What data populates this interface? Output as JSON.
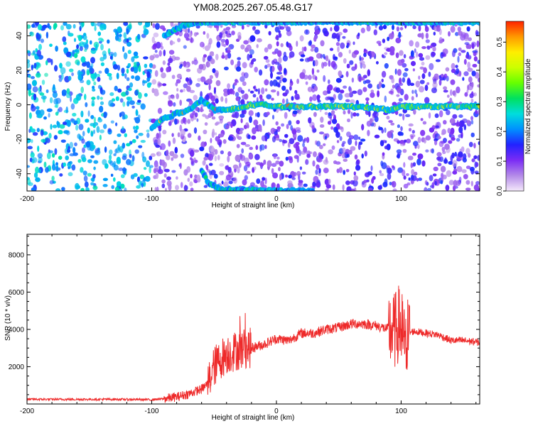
{
  "title": "YM08.2025.267.05.48.G17",
  "chart_data": [
    {
      "type": "heatmap",
      "title": "YM08.2025.267.05.48.G17",
      "xlabel": "Height of straight line (km)",
      "ylabel": "Frequency (Hz)",
      "xlim": [
        -200,
        163
      ],
      "ylim": [
        -50,
        48
      ],
      "xticks": [
        -200,
        -100,
        0,
        100
      ],
      "yticks": [
        -40,
        -20,
        0,
        20,
        40
      ],
      "colorbar": {
        "label": "Normalized spectral amplitude",
        "range": [
          0.0,
          0.57
        ],
        "ticks": [
          0.0,
          0.1,
          0.2,
          0.3,
          0.4,
          0.5
        ],
        "colors": [
          "#f4e9fb",
          "#b48ae8",
          "#7b2cf5",
          "#2222ff",
          "#0090ff",
          "#00dddd",
          "#00e060",
          "#66ff00",
          "#ccff00",
          "#ffee00",
          "#ff9900",
          "#ff2200"
        ]
      },
      "features": [
        {
          "name": "signal-trace",
          "points": [
            [
              -100,
              -13
            ],
            [
              -90,
              -8
            ],
            [
              -80,
              -5
            ],
            [
              -70,
              -3
            ],
            [
              -60,
              3
            ],
            [
              -50,
              -3
            ],
            [
              -40,
              -3
            ],
            [
              -30,
              -2
            ],
            [
              -20,
              0
            ],
            [
              -10,
              0
            ],
            [
              0,
              -1
            ],
            [
              20,
              -1
            ],
            [
              40,
              -1
            ],
            [
              60,
              -1
            ],
            [
              80,
              -2
            ],
            [
              90,
              -3
            ],
            [
              100,
              -1
            ],
            [
              120,
              -1
            ],
            [
              140,
              -1
            ],
            [
              163,
              -1
            ]
          ]
        },
        {
          "name": "top-band",
          "points": [
            [
              -90,
              40
            ],
            [
              -75,
              46
            ],
            [
              -60,
              48
            ],
            [
              0,
              48
            ],
            [
              100,
              48
            ],
            [
              163,
              48
            ]
          ]
        },
        {
          "name": "bottom-band",
          "points": [
            [
              -60,
              -38
            ],
            [
              -55,
              -45
            ],
            [
              -45,
              -49
            ],
            [
              0,
              -50
            ],
            [
              30,
              -50
            ]
          ]
        }
      ]
    },
    {
      "type": "line",
      "xlabel": "Height of straight line (km)",
      "ylabel": "SNR (10 * v/v)",
      "xlim": [
        -200,
        163
      ],
      "ylim": [
        0,
        9100
      ],
      "xticks": [
        -200,
        -100,
        0,
        100
      ],
      "yticks": [
        2000,
        4000,
        6000,
        8000
      ],
      "series": [
        {
          "name": "SNR",
          "color": "#ee2a2a",
          "x": [
            -200,
            -175,
            -150,
            -125,
            -100,
            -90,
            -80,
            -70,
            -60,
            -55,
            -50,
            -45,
            -40,
            -35,
            -30,
            -25,
            -20,
            -10,
            0,
            10,
            20,
            30,
            40,
            50,
            60,
            70,
            80,
            90,
            95,
            98,
            100,
            102,
            104,
            106,
            110,
            120,
            130,
            140,
            150,
            163
          ],
          "values": [
            250,
            250,
            250,
            250,
            230,
            280,
            380,
            550,
            800,
            1100,
            2000,
            2400,
            2700,
            2800,
            2900,
            3000,
            3000,
            3200,
            3500,
            3400,
            3800,
            3800,
            4000,
            4100,
            4300,
            4300,
            4200,
            4000,
            3900,
            4300,
            4100,
            3600,
            3600,
            3800,
            3900,
            3800,
            3700,
            3400,
            3400,
            3300
          ]
        }
      ]
    }
  ]
}
